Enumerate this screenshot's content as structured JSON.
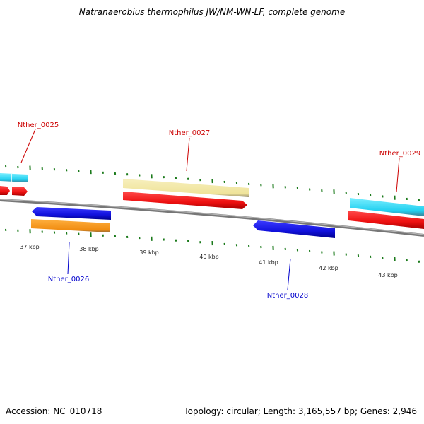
{
  "title": "Natranaerobius thermophilus JW/NM-WN-LF, complete genome",
  "footer": {
    "accession": "Accession: NC_010718",
    "summary": "Topology: circular; Length: 3,165,557 bp; Genes: 2,946"
  },
  "colors": {
    "forward_cds": "#ee1111",
    "reverse_cds": "#1111dd",
    "forward_gene": "#f3e8a4",
    "reverse_gene": "#f39a1e",
    "cyan_gene": "#29d6f2",
    "backbone": "#8a8a8a",
    "tick": "#1b7a1b",
    "forward_label": "#cc0000",
    "reverse_label": "#0000cc"
  },
  "scale": {
    "labels": [
      "37 kbp",
      "38 kbp",
      "39 kbp",
      "40 kbp",
      "41 kbp",
      "42 kbp",
      "43 kbp"
    ]
  },
  "genes": [
    {
      "name": "Nther_0025",
      "strand": "forward"
    },
    {
      "name": "Nther_0026",
      "strand": "reverse"
    },
    {
      "name": "Nther_0027",
      "strand": "forward"
    },
    {
      "name": "Nther_0028",
      "strand": "reverse"
    },
    {
      "name": "Nther_0029",
      "strand": "forward"
    }
  ]
}
